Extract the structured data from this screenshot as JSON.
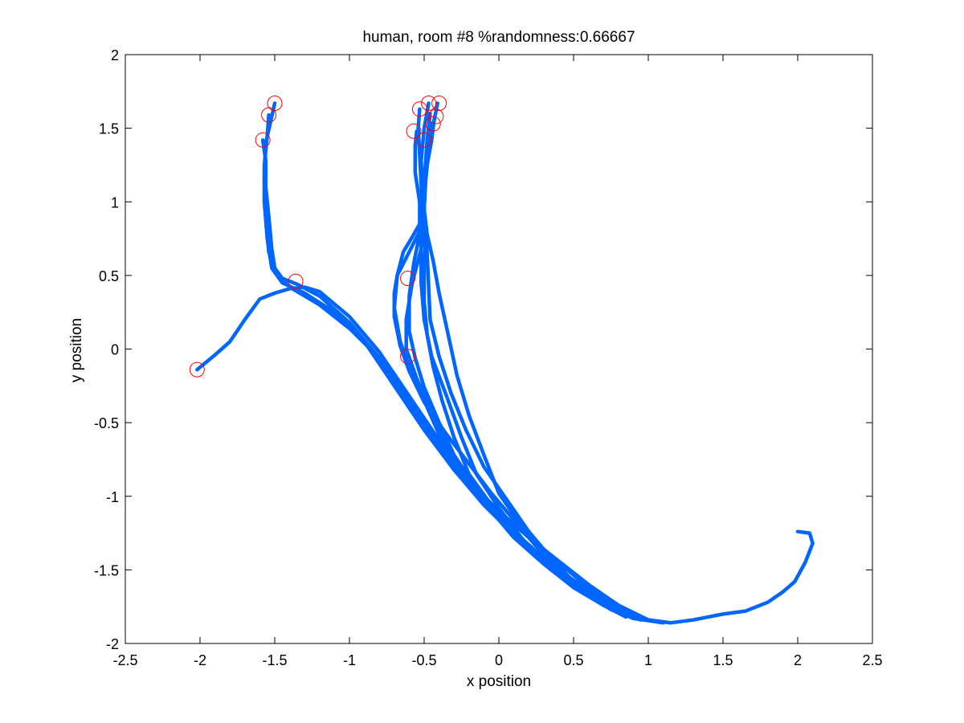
{
  "chart_data": {
    "type": "line",
    "title": "human, room #8 %randomness:0.66667",
    "xlabel": "x position",
    "ylabel": "y position",
    "xlim": [
      -2.5,
      2.5
    ],
    "ylim": [
      -2,
      2
    ],
    "xticks": [
      -2.5,
      -2,
      -1.5,
      -1,
      -0.5,
      0,
      0.5,
      1,
      1.5,
      2,
      2.5
    ],
    "yticks": [
      -2,
      -1.5,
      -1,
      -0.5,
      0,
      0.5,
      1,
      1.5,
      2
    ],
    "xtick_labels": [
      "-2.5",
      "-2",
      "-1.5",
      "-1",
      "-0.5",
      "0",
      "0.5",
      "1",
      "1.5",
      "2",
      "2.5"
    ],
    "ytick_labels": [
      "-2",
      "-1.5",
      "-1",
      "-0.5",
      "0",
      "0.5",
      "1",
      "1.5",
      "2"
    ],
    "grid": false,
    "legend": "none",
    "line_color": "#0066ff",
    "marker_color": "#ff0000",
    "series": [
      {
        "x": [
          2.0,
          2.08,
          2.1,
          2.05,
          1.98,
          1.9,
          1.8,
          1.65,
          1.5,
          1.3,
          1.15,
          1.0,
          0.8,
          0.6,
          0.4,
          0.2,
          0.0,
          -0.2,
          -0.4,
          -0.6,
          -0.8,
          -1.0,
          -1.2,
          -1.3,
          -1.4,
          -1.5,
          -1.6,
          -1.7,
          -1.8,
          -1.9,
          -2.02
        ],
        "y": [
          -1.24,
          -1.25,
          -1.32,
          -1.45,
          -1.58,
          -1.65,
          -1.72,
          -1.78,
          -1.8,
          -1.84,
          -1.86,
          -1.84,
          -1.75,
          -1.62,
          -1.45,
          -1.28,
          -1.1,
          -0.9,
          -0.62,
          -0.32,
          -0.02,
          0.22,
          0.39,
          0.42,
          0.41,
          0.38,
          0.34,
          0.2,
          0.05,
          -0.04,
          -0.14
        ]
      },
      {
        "x": [
          1.15,
          1.0,
          0.8,
          0.6,
          0.4,
          0.2,
          0.0,
          -0.2,
          -0.4,
          -0.6,
          -0.8,
          -1.0,
          -1.2,
          -1.35,
          -1.45,
          -1.5,
          -1.52,
          -1.54,
          -1.56,
          -1.56,
          -1.58
        ],
        "y": [
          -1.86,
          -1.84,
          -1.74,
          -1.6,
          -1.44,
          -1.28,
          -1.1,
          -0.92,
          -0.66,
          -0.35,
          -0.06,
          0.18,
          0.36,
          0.44,
          0.48,
          0.55,
          0.68,
          0.9,
          1.1,
          1.28,
          1.42
        ]
      },
      {
        "x": [
          1.1,
          0.9,
          0.7,
          0.5,
          0.3,
          0.1,
          -0.1,
          -0.3,
          -0.5,
          -0.7,
          -0.9,
          -1.1,
          -1.3,
          -1.45,
          -1.52,
          -1.55,
          -1.57,
          -1.57,
          -1.55,
          -1.54
        ],
        "y": [
          -1.86,
          -1.82,
          -1.72,
          -1.58,
          -1.42,
          -1.25,
          -1.05,
          -0.82,
          -0.55,
          -0.25,
          0.05,
          0.25,
          0.38,
          0.45,
          0.55,
          0.75,
          1.0,
          1.25,
          1.45,
          1.59
        ]
      },
      {
        "x": [
          1.1,
          0.9,
          0.7,
          0.5,
          0.3,
          0.1,
          -0.1,
          -0.3,
          -0.45,
          -0.6,
          -0.8,
          -1.0,
          -1.2,
          -1.4,
          -1.5,
          -1.54,
          -1.56,
          -1.57,
          -1.56,
          -1.52,
          -1.5
        ],
        "y": [
          -1.86,
          -1.83,
          -1.74,
          -1.6,
          -1.44,
          -1.26,
          -1.06,
          -0.82,
          -0.6,
          -0.36,
          -0.06,
          0.14,
          0.3,
          0.42,
          0.52,
          0.66,
          0.88,
          1.15,
          1.4,
          1.58,
          1.67
        ]
      },
      {
        "x": [
          1.0,
          0.8,
          0.6,
          0.4,
          0.2,
          0.0,
          -0.15,
          -0.3,
          -0.4,
          -0.5,
          -0.6,
          -0.66,
          -0.7,
          -0.68,
          -0.64,
          -0.58,
          -0.53,
          -0.53,
          -0.56,
          -0.56,
          -0.55
        ],
        "y": [
          -1.84,
          -1.76,
          -1.64,
          -1.5,
          -1.34,
          -1.16,
          -0.98,
          -0.76,
          -0.58,
          -0.35,
          -0.12,
          0.05,
          0.28,
          0.5,
          0.66,
          0.76,
          0.85,
          1.0,
          1.2,
          1.38,
          1.48
        ]
      },
      {
        "x": [
          0.95,
          0.75,
          0.55,
          0.35,
          0.15,
          0.0,
          -0.15,
          -0.3,
          -0.4,
          -0.5,
          -0.56,
          -0.6,
          -0.6,
          -0.57,
          -0.53,
          -0.51,
          -0.52,
          -0.53,
          -0.54,
          -0.53
        ],
        "y": [
          -1.84,
          -1.77,
          -1.64,
          -1.5,
          -1.32,
          -1.15,
          -0.95,
          -0.72,
          -0.5,
          -0.26,
          -0.06,
          0.12,
          0.36,
          0.58,
          0.78,
          0.95,
          1.12,
          1.32,
          1.5,
          1.63
        ]
      },
      {
        "x": [
          0.9,
          0.7,
          0.5,
          0.3,
          0.1,
          -0.05,
          -0.2,
          -0.35,
          -0.45,
          -0.55,
          -0.62,
          -0.62,
          -0.58,
          -0.52,
          -0.5,
          -0.51,
          -0.52,
          -0.5,
          -0.47
        ],
        "y": [
          -1.83,
          -1.74,
          -1.62,
          -1.46,
          -1.28,
          -1.1,
          -0.9,
          -0.65,
          -0.42,
          -0.2,
          0.0,
          0.2,
          0.45,
          0.68,
          0.85,
          1.05,
          1.28,
          1.5,
          1.67
        ]
      },
      {
        "x": [
          0.9,
          0.7,
          0.5,
          0.3,
          0.1,
          -0.05,
          -0.2,
          -0.3,
          -0.38,
          -0.44,
          -0.48,
          -0.5,
          -0.5,
          -0.49,
          -0.5,
          -0.5,
          -0.49,
          -0.48,
          -0.46
        ],
        "y": [
          -1.82,
          -1.72,
          -1.58,
          -1.42,
          -1.24,
          -1.06,
          -0.85,
          -0.6,
          -0.35,
          -0.12,
          0.1,
          0.32,
          0.55,
          0.78,
          0.95,
          1.12,
          1.28,
          1.42,
          1.6
        ]
      },
      {
        "x": [
          0.9,
          0.7,
          0.5,
          0.3,
          0.15,
          0.0,
          -0.15,
          -0.25,
          -0.35,
          -0.45,
          -0.5,
          -0.52,
          -0.52,
          -0.52,
          -0.5,
          -0.49,
          -0.47,
          -0.45
        ],
        "y": [
          -1.82,
          -1.73,
          -1.6,
          -1.45,
          -1.28,
          -1.08,
          -0.85,
          -0.6,
          -0.32,
          -0.05,
          0.2,
          0.45,
          0.68,
          0.88,
          1.05,
          1.22,
          1.4,
          1.53
        ]
      },
      {
        "x": [
          0.9,
          0.7,
          0.5,
          0.35,
          0.2,
          0.05,
          -0.1,
          -0.22,
          -0.32,
          -0.4,
          -0.46,
          -0.47,
          -0.48,
          -0.5,
          -0.5,
          -0.48,
          -0.45,
          -0.43
        ],
        "y": [
          -1.82,
          -1.72,
          -1.58,
          -1.42,
          -1.24,
          -1.02,
          -0.8,
          -0.55,
          -0.3,
          -0.05,
          0.2,
          0.42,
          0.65,
          0.85,
          1.05,
          1.25,
          1.42,
          1.58
        ]
      },
      {
        "x": [
          0.85,
          0.65,
          0.45,
          0.3,
          0.15,
          0.0,
          -0.1,
          -0.2,
          -0.28,
          -0.34,
          -0.4,
          -0.44,
          -0.48,
          -0.5,
          -0.49,
          -0.47,
          -0.44,
          -0.41
        ],
        "y": [
          -1.8,
          -1.7,
          -1.56,
          -1.4,
          -1.2,
          -0.98,
          -0.72,
          -0.45,
          -0.18,
          0.1,
          0.38,
          0.6,
          0.78,
          0.95,
          1.15,
          1.35,
          1.52,
          1.67
        ]
      },
      {
        "x": [
          0.85,
          0.7,
          0.55,
          0.4,
          0.25,
          0.1,
          -0.05,
          -0.2,
          -0.35,
          -0.5,
          -0.6,
          -0.66,
          -0.7,
          -0.7,
          -0.68,
          -0.63,
          -0.58,
          -0.54,
          -0.51
        ],
        "y": [
          -1.82,
          -1.74,
          -1.64,
          -1.5,
          -1.34,
          -1.16,
          -0.98,
          -0.78,
          -0.58,
          -0.36,
          -0.15,
          0.02,
          0.22,
          0.38,
          0.5,
          0.6,
          0.7,
          0.78,
          0.85
        ]
      }
    ],
    "markers": {
      "x": [
        -2.02,
        -1.5,
        -1.54,
        -1.58,
        -1.36,
        -0.61,
        -0.61,
        -0.47,
        -0.53,
        -0.57,
        -0.4,
        -0.42,
        -0.44,
        -0.5
      ],
      "y": [
        -0.14,
        1.67,
        1.59,
        1.42,
        0.46,
        0.48,
        -0.05,
        1.67,
        1.63,
        1.48,
        1.67,
        1.58,
        1.53,
        1.42
      ]
    }
  }
}
